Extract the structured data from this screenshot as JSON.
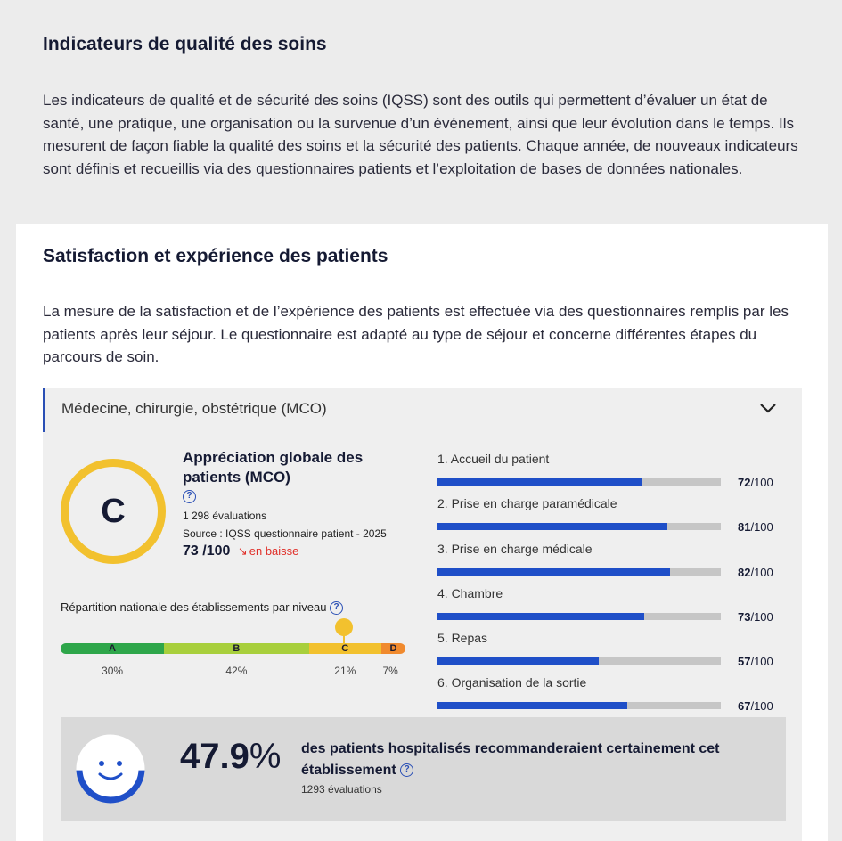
{
  "header": {
    "title": "Indicateurs de qualité des soins",
    "description": "Les indicateurs de qualité et de sécurité des soins (IQSS) sont des outils qui permettent d’évaluer un état de santé, une pratique, une organisation ou la survenue d’un événement, ainsi que leur évolution dans le temps. Ils mesurent de façon fiable la qualité des soins et la sécurité des patients. Chaque année, de nouveaux indicateurs sont définis et recueillis via des questionnaires patients et l’exploitation de bases de données nationales."
  },
  "section": {
    "title": "Satisfaction et expérience des patients",
    "description": "La mesure de la satisfaction et de l’expérience des patients est effectuée via des questionnaires remplis par les patients après leur séjour. Le questionnaire est adapté au type de séjour et concerne différentes étapes du parcours de soin."
  },
  "accordion": {
    "title": "Médecine, chirurgie, obstétrique (MCO)",
    "expanded": true
  },
  "score": {
    "grade": "C",
    "title": "Appréciation globale des patients (MCO)",
    "evaluations": "1 298 évaluations",
    "source": "Source : IQSS questionnaire patient - 2025",
    "value": "73",
    "max": "/100",
    "trend": "en baisse",
    "ring_color": "#f2c12e"
  },
  "distribution": {
    "label": "Répartition nationale des établissements par niveau",
    "levels": [
      {
        "letter": "A",
        "pct": "30%",
        "share": 30,
        "color": "#2ea64a"
      },
      {
        "letter": "B",
        "pct": "42%",
        "share": 42,
        "color": "#a8cf3c"
      },
      {
        "letter": "C",
        "pct": "21%",
        "share": 21,
        "color": "#f2c12e"
      },
      {
        "letter": "D",
        "pct": "7%",
        "share": 7,
        "color": "#f08a2e"
      }
    ]
  },
  "criteria": [
    {
      "label": "1. Accueil du patient",
      "value": 72,
      "value_text": "72",
      "max": "/100"
    },
    {
      "label": "2. Prise en charge paramédicale",
      "value": 81,
      "value_text": "81",
      "max": "/100"
    },
    {
      "label": "3. Prise en charge médicale",
      "value": 82,
      "value_text": "82",
      "max": "/100"
    },
    {
      "label": "4. Chambre",
      "value": 73,
      "value_text": "73",
      "max": "/100"
    },
    {
      "label": "5. Repas",
      "value": 57,
      "value_text": "57",
      "max": "/100"
    },
    {
      "label": "6. Organisation de la sortie",
      "value": 67,
      "value_text": "67",
      "max": "/100"
    }
  ],
  "recommendation": {
    "value": "47.9",
    "unit": "%",
    "fill_fraction": 0.479,
    "text": "des patients hospitalisés recommanderaient certainement cet établissement",
    "evaluations": "1293 évaluations"
  },
  "colors": {
    "accent": "#2a4fb5",
    "bar": "#1f4fc8",
    "trend_down": "#e0302a"
  }
}
